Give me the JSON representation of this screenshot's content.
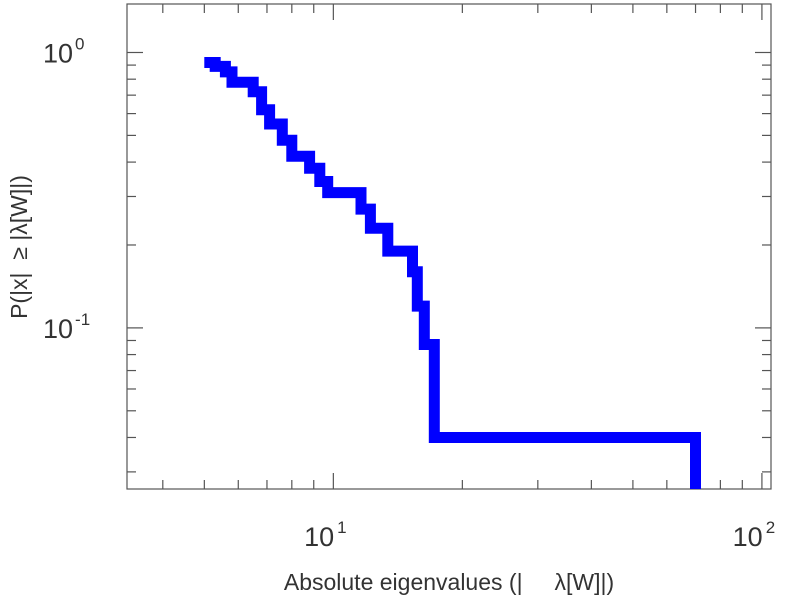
{
  "chart_data": {
    "type": "line",
    "step": true,
    "xscale": "log",
    "yscale": "log",
    "xlim": [
      3.3,
      105
    ],
    "ylim": [
      0.026,
      1.5
    ],
    "grid": false,
    "xlabel": "Absolute eigenvalues (|     λ[W]|)",
    "ylabel": "P(|x|  ≥ |λ[W]|)",
    "x_ticks": [
      {
        "base": "10",
        "exp": "1",
        "value": 10
      },
      {
        "base": "10",
        "exp": "2",
        "value": 100
      }
    ],
    "y_ticks": [
      {
        "base": "10",
        "exp": "0",
        "value": 1
      },
      {
        "base": "10",
        "exp": "-1",
        "value": 0.1
      }
    ],
    "series": [
      {
        "color": "#0000ff",
        "points": [
          [
            5.0,
            0.92
          ],
          [
            5.3,
            0.92
          ],
          [
            5.3,
            0.89
          ],
          [
            5.6,
            0.89
          ],
          [
            5.6,
            0.85
          ],
          [
            5.8,
            0.85
          ],
          [
            5.8,
            0.78
          ],
          [
            6.5,
            0.78
          ],
          [
            6.5,
            0.72
          ],
          [
            6.8,
            0.72
          ],
          [
            6.8,
            0.62
          ],
          [
            7.1,
            0.62
          ],
          [
            7.1,
            0.55
          ],
          [
            7.6,
            0.55
          ],
          [
            7.6,
            0.48
          ],
          [
            8.0,
            0.48
          ],
          [
            8.0,
            0.42
          ],
          [
            8.8,
            0.42
          ],
          [
            8.8,
            0.38
          ],
          [
            9.3,
            0.38
          ],
          [
            9.3,
            0.34
          ],
          [
            9.7,
            0.34
          ],
          [
            9.7,
            0.31
          ],
          [
            11.6,
            0.31
          ],
          [
            11.6,
            0.27
          ],
          [
            12.2,
            0.27
          ],
          [
            12.2,
            0.23
          ],
          [
            13.4,
            0.23
          ],
          [
            13.4,
            0.19
          ],
          [
            15.3,
            0.19
          ],
          [
            15.3,
            0.16
          ],
          [
            15.7,
            0.16
          ],
          [
            15.7,
            0.12
          ],
          [
            16.3,
            0.12
          ],
          [
            16.3,
            0.087
          ],
          [
            17.2,
            0.087
          ],
          [
            17.2,
            0.04
          ],
          [
            70.0,
            0.04
          ],
          [
            70.0,
            0.026
          ]
        ]
      }
    ]
  }
}
